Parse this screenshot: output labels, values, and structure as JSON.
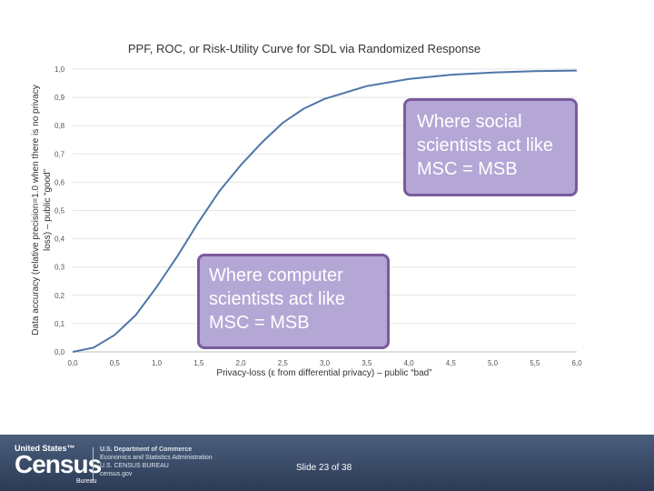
{
  "chart_data": {
    "type": "line",
    "title": "PPF, ROC, or Risk-Utility Curve for SDL via Randomized Response",
    "xlabel": "Privacy-loss  (ε from differential privacy) – public “bad”",
    "ylabel_line1": "Data accuracy (relative precision=1.0 when there is no privacy",
    "ylabel_line2": "loss) – public “good”",
    "xlim": [
      0,
      6
    ],
    "ylim": [
      0,
      1
    ],
    "x_ticks": [
      0,
      0.5,
      1,
      1.5,
      2,
      2.5,
      3,
      3.5,
      4,
      4.5,
      5,
      5.5,
      6
    ],
    "x_tick_labels": [
      "0,0",
      "0,5",
      "1,0",
      "1,5",
      "2,0",
      "2,5",
      "3,0",
      "3,5",
      "4,0",
      "4,5",
      "5,0",
      "5,5",
      "6,0"
    ],
    "y_ticks": [
      0,
      0.1,
      0.2,
      0.3,
      0.4,
      0.5,
      0.6,
      0.7,
      0.8,
      0.9,
      1.0
    ],
    "y_tick_labels": [
      "0,0",
      "0,1",
      "0,2",
      "0,3",
      "0,4",
      "0,5",
      "0,6",
      "0,7",
      "0,8",
      "0,9",
      "1,0"
    ],
    "grid": "horizontal",
    "series_color": "#4e76a8",
    "series": [
      {
        "x": [
          0,
          0.25,
          0.5,
          0.75,
          1.0,
          1.25,
          1.5,
          1.75,
          2.0,
          2.25,
          2.5,
          2.75,
          3.0,
          3.5,
          4.0,
          4.5,
          5.0,
          5.5,
          6.0
        ],
        "values": [
          0,
          0.015,
          0.06,
          0.13,
          0.23,
          0.34,
          0.46,
          0.57,
          0.66,
          0.74,
          0.81,
          0.86,
          0.895,
          0.94,
          0.965,
          0.98,
          0.988,
          0.993,
          0.995
        ]
      }
    ],
    "annotations": [
      {
        "text": "Where social scientists act like MSC = MSB"
      },
      {
        "text": "Where computer scientists act like MSC = MSB"
      }
    ]
  },
  "footer": {
    "logo_small": "United States™",
    "logo_big": "Census",
    "logo_bureau": "Bureau",
    "agency_lines": [
      "U.S. Department of Commerce",
      "Economics and Statistics Administration",
      "U.S. CENSUS BUREAU",
      "census.gov"
    ],
    "slide_number": "Slide 23 of 38"
  },
  "colors": {
    "callout_fill": "#b4a7d6",
    "callout_border": "#7a5b9c",
    "footer_band": "#3b4c68"
  }
}
